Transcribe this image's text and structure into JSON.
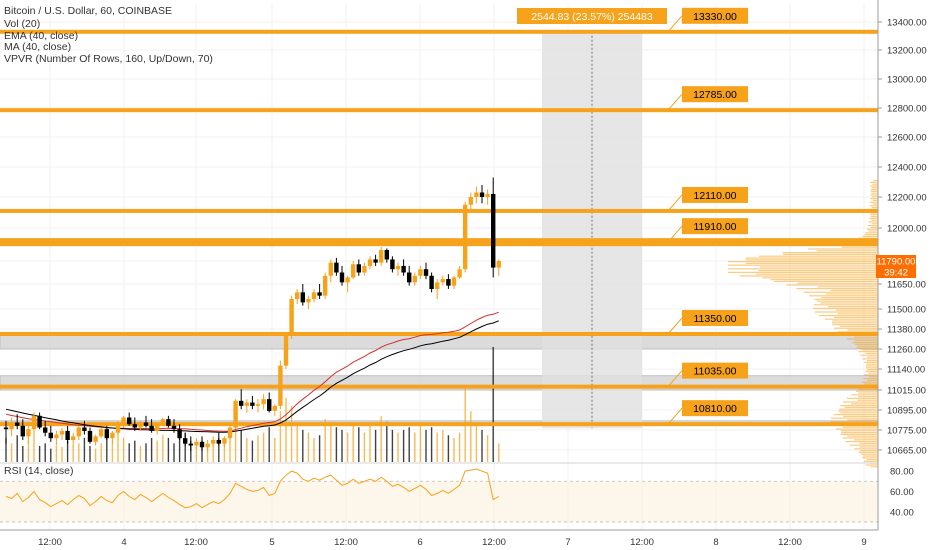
{
  "legend": {
    "title": "Bitcoin / U.S. Dollar, 60, COINBASE",
    "vol": "Vol (20)",
    "ema": "EMA (40, close)",
    "ma": "MA (40, close)",
    "vpvr": "VPVR (Number Of Rows, 160, Up/Down, 70)"
  },
  "rsi_legend": "RSI (14, close)",
  "measure_label": "2544.83 (23.57%) 254483",
  "price_badge": {
    "price": "11790.00",
    "countdown": "39:42"
  },
  "colors": {
    "level": "#f7a21b",
    "up": "#f7a21b",
    "down": "#000000",
    "ema": "#d32f2f",
    "ma": "#000000",
    "rsi": "#f7a21b",
    "zone": "#d8d8d8",
    "measure": "#e0e0e0",
    "badge": "#ff6d00"
  },
  "chart_data": [
    {
      "type": "candlestick",
      "title": "Bitcoin / U.S. Dollar, 60, COINBASE",
      "x_tick_labels": [
        "12:00",
        "4",
        "12:00",
        "5",
        "12:00",
        "6",
        "12:00",
        "7",
        "12:00",
        "8",
        "12:00",
        "9"
      ],
      "y_tick_labels": [
        "13400.00",
        "13200.00",
        "13000.00",
        "12800.00",
        "12600.00",
        "12400.00",
        "12200.00",
        "12000.00",
        "11790.00",
        "11650.00",
        "11500.00",
        "11380.00",
        "11260.00",
        "11140.00",
        "11015.00",
        "10895.00",
        "10775.00",
        "10665.00"
      ],
      "current_price": 11790.0,
      "levels": [
        {
          "label": "13330.00",
          "value": 13330
        },
        {
          "label": "12785.00",
          "value": 12785
        },
        {
          "label": "12110.00",
          "value": 12110
        },
        {
          "label": "11910.00",
          "value": 11910
        },
        {
          "label": "11350.00",
          "value": 11350
        },
        {
          "label": "11035.00",
          "value": 11035
        },
        {
          "label": "10810.00",
          "value": 10810
        }
      ],
      "zones": [
        {
          "from": 11260,
          "to": 11350
        },
        {
          "from": 11015,
          "to": 11100
        },
        {
          "from": 10810,
          "to": 10830
        }
      ],
      "measurement": {
        "from": 10785,
        "to": 13330,
        "label": "2544.83 (23.57%) 254483"
      },
      "candles": [
        [
          10790,
          10830,
          10700,
          10780
        ],
        [
          10780,
          10850,
          10740,
          10820
        ],
        [
          10820,
          10870,
          10780,
          10800
        ],
        [
          10800,
          10840,
          10720,
          10740
        ],
        [
          10740,
          10800,
          10700,
          10780
        ],
        [
          10780,
          10880,
          10760,
          10860
        ],
        [
          10860,
          10880,
          10780,
          10790
        ],
        [
          10790,
          10830,
          10740,
          10760
        ],
        [
          10760,
          10800,
          10710,
          10730
        ],
        [
          10730,
          10770,
          10690,
          10750
        ],
        [
          10750,
          10790,
          10720,
          10770
        ],
        [
          10770,
          10800,
          10700,
          10720
        ],
        [
          10720,
          10760,
          10680,
          10740
        ],
        [
          10740,
          10800,
          10720,
          10790
        ],
        [
          10790,
          10830,
          10750,
          10770
        ],
        [
          10770,
          10790,
          10700,
          10710
        ],
        [
          10710,
          10750,
          10690,
          10740
        ],
        [
          10740,
          10790,
          10730,
          10780
        ],
        [
          10780,
          10800,
          10720,
          10730
        ],
        [
          10730,
          10770,
          10700,
          10760
        ],
        [
          10760,
          10830,
          10750,
          10810
        ],
        [
          10810,
          10860,
          10790,
          10850
        ],
        [
          10850,
          10880,
          10800,
          10810
        ],
        [
          10810,
          10850,
          10770,
          10790
        ],
        [
          10790,
          10830,
          10770,
          10820
        ],
        [
          10820,
          10860,
          10790,
          10800
        ],
        [
          10800,
          10840,
          10760,
          10770
        ],
        [
          10770,
          10820,
          10750,
          10810
        ],
        [
          10810,
          10850,
          10800,
          10840
        ],
        [
          10840,
          10860,
          10790,
          10800
        ],
        [
          10800,
          10840,
          10760,
          10780
        ],
        [
          10780,
          10810,
          10720,
          10730
        ],
        [
          10730,
          10760,
          10690,
          10700
        ],
        [
          10700,
          10740,
          10660,
          10690
        ],
        [
          10690,
          10730,
          10670,
          10710
        ],
        [
          10710,
          10740,
          10660,
          10680
        ],
        [
          10680,
          10720,
          10660,
          10700
        ],
        [
          10700,
          10740,
          10680,
          10720
        ],
        [
          10720,
          10760,
          10690,
          10700
        ],
        [
          10700,
          10740,
          10680,
          10730
        ],
        [
          10730,
          10800,
          10720,
          10790
        ],
        [
          10790,
          10960,
          10780,
          10950
        ],
        [
          10950,
          11020,
          10900,
          10920
        ],
        [
          10920,
          10960,
          10880,
          10940
        ],
        [
          10940,
          10980,
          10900,
          10920
        ],
        [
          10920,
          10960,
          10880,
          10930
        ],
        [
          10930,
          10990,
          10900,
          10960
        ],
        [
          10960,
          11000,
          10880,
          10890
        ],
        [
          10890,
          10930,
          10860,
          10920
        ],
        [
          10920,
          11190,
          10900,
          11160
        ],
        [
          11160,
          11350,
          11140,
          11340
        ],
        [
          11340,
          11580,
          11320,
          11560
        ],
        [
          11560,
          11620,
          11530,
          11600
        ],
        [
          11600,
          11650,
          11520,
          11540
        ],
        [
          11540,
          11580,
          11500,
          11560
        ],
        [
          11560,
          11620,
          11540,
          11600
        ],
        [
          11600,
          11650,
          11560,
          11580
        ],
        [
          11580,
          11720,
          11560,
          11700
        ],
        [
          11700,
          11800,
          11660,
          11780
        ],
        [
          11780,
          11810,
          11700,
          11720
        ],
        [
          11720,
          11760,
          11640,
          11660
        ],
        [
          11660,
          11700,
          11600,
          11690
        ],
        [
          11690,
          11790,
          11680,
          11770
        ],
        [
          11770,
          11800,
          11700,
          11720
        ],
        [
          11720,
          11780,
          11700,
          11760
        ],
        [
          11760,
          11820,
          11740,
          11800
        ],
        [
          11800,
          11830,
          11760,
          11780
        ],
        [
          11780,
          11880,
          11760,
          11860
        ],
        [
          11860,
          11870,
          11780,
          11800
        ],
        [
          11800,
          11820,
          11720,
          11740
        ],
        [
          11740,
          11780,
          11700,
          11760
        ],
        [
          11760,
          11800,
          11700,
          11720
        ],
        [
          11720,
          11760,
          11640,
          11660
        ],
        [
          11660,
          11720,
          11640,
          11700
        ],
        [
          11700,
          11760,
          11680,
          11740
        ],
        [
          11740,
          11780,
          11680,
          11700
        ],
        [
          11700,
          11720,
          11600,
          11620
        ],
        [
          11620,
          11680,
          11560,
          11660
        ],
        [
          11660,
          11700,
          11640,
          11680
        ],
        [
          11680,
          11710,
          11620,
          11640
        ],
        [
          11640,
          11700,
          11620,
          11690
        ],
        [
          11690,
          11760,
          11680,
          11740
        ],
        [
          11740,
          12170,
          11720,
          12150
        ],
        [
          12150,
          12230,
          12100,
          12200
        ],
        [
          12200,
          12270,
          12160,
          12230
        ],
        [
          12230,
          12280,
          12160,
          12200
        ],
        [
          12200,
          12250,
          12150,
          12220
        ],
        [
          12220,
          12330,
          11690,
          11750
        ],
        [
          11750,
          11800,
          11700,
          11790
        ]
      ],
      "volume": [
        45,
        35,
        50,
        30,
        40,
        55,
        30,
        35,
        25,
        30,
        28,
        40,
        30,
        35,
        45,
        30,
        25,
        35,
        50,
        40,
        55,
        45,
        35,
        40,
        30,
        35,
        45,
        40,
        50,
        45,
        35,
        60,
        55,
        40,
        35,
        40,
        30,
        35,
        45,
        40,
        55,
        70,
        60,
        45,
        40,
        50,
        55,
        65,
        45,
        95,
        120,
        105,
        70,
        60,
        55,
        45,
        50,
        80,
        75,
        65,
        60,
        55,
        70,
        65,
        55,
        70,
        60,
        85,
        75,
        60,
        55,
        60,
        65,
        55,
        70,
        60,
        65,
        55,
        60,
        50,
        45,
        55,
        140,
        95,
        70,
        60,
        50,
        215,
        35
      ],
      "ema_40": [
        10870,
        10862,
        10856,
        10849,
        10842,
        10838,
        10834,
        10829,
        10824,
        10820,
        10815,
        10811,
        10807,
        10804,
        10801,
        10797,
        10794,
        10792,
        10789,
        10787,
        10785,
        10785,
        10784,
        10784,
        10784,
        10784,
        10783,
        10783,
        10784,
        10785,
        10784,
        10783,
        10782,
        10779,
        10777,
        10775,
        10772,
        10770,
        10769,
        10768,
        10768,
        10778,
        10786,
        10795,
        10802,
        10808,
        10816,
        10820,
        10825,
        10841,
        10866,
        10899,
        10932,
        10960,
        10985,
        11013,
        11036,
        11064,
        11095,
        11121,
        11139,
        11158,
        11181,
        11198,
        11215,
        11236,
        11251,
        11271,
        11286,
        11296,
        11308,
        11317,
        11322,
        11331,
        11341,
        11346,
        11347,
        11351,
        11357,
        11360,
        11366,
        11374,
        11393,
        11413,
        11433,
        11449,
        11463,
        11468,
        11481
      ],
      "ma_40": [
        10900,
        10892,
        10885,
        10877,
        10870,
        10863,
        10856,
        10849,
        10842,
        10836,
        10829,
        10823,
        10818,
        10812,
        10807,
        10802,
        10798,
        10794,
        10790,
        10787,
        10784,
        10782,
        10780,
        10779,
        10777,
        10776,
        10775,
        10774,
        10773,
        10773,
        10772,
        10771,
        10770,
        10768,
        10767,
        10766,
        10765,
        10764,
        10763,
        10763,
        10764,
        10769,
        10774,
        10780,
        10786,
        10791,
        10797,
        10801,
        10805,
        10817,
        10835,
        10861,
        10887,
        10911,
        10934,
        10958,
        10979,
        11004,
        11032,
        11055,
        11073,
        11091,
        11112,
        11129,
        11145,
        11164,
        11179,
        11198,
        11214,
        11227,
        11239,
        11250,
        11258,
        11268,
        11279,
        11287,
        11292,
        11299,
        11307,
        11313,
        11321,
        11330,
        11346,
        11363,
        11380,
        11395,
        11409,
        11416,
        11429
      ],
      "rsi": [
        55,
        53,
        58,
        50,
        54,
        60,
        52,
        49,
        45,
        48,
        51,
        47,
        52,
        56,
        53,
        46,
        50,
        55,
        51,
        49,
        56,
        60,
        55,
        52,
        57,
        54,
        50,
        54,
        58,
        54,
        51,
        47,
        44,
        45,
        48,
        44,
        47,
        50,
        48,
        52,
        58,
        68,
        65,
        62,
        60,
        61,
        64,
        56,
        58,
        70,
        76,
        80,
        78,
        72,
        70,
        73,
        71,
        74,
        76,
        71,
        66,
        68,
        72,
        68,
        70,
        72,
        70,
        74,
        70,
        65,
        67,
        64,
        60,
        63,
        66,
        62,
        56,
        58,
        61,
        58,
        62,
        66,
        80,
        81,
        82,
        80,
        78,
        52,
        55
      ]
    }
  ]
}
